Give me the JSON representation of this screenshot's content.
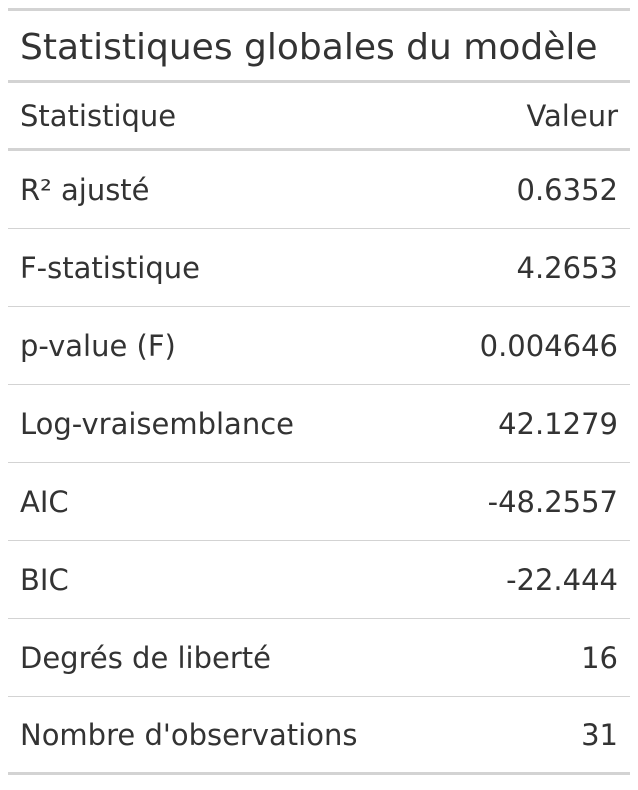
{
  "table": {
    "title": "Statistiques globales du modèle",
    "columns": [
      "Statistique",
      "Valeur"
    ],
    "rows": [
      {
        "label": "R² ajusté",
        "value": "0.6352"
      },
      {
        "label": "F-statistique",
        "value": "4.2653"
      },
      {
        "label": "p-value (F)",
        "value": "0.004646"
      },
      {
        "label": "Log-vraisemblance",
        "value": "42.1279"
      },
      {
        "label": "AIC",
        "value": "-48.2557"
      },
      {
        "label": "BIC",
        "value": "-22.444"
      },
      {
        "label": "Degrés de liberté",
        "value": "16"
      },
      {
        "label": "Nombre d'observations",
        "value": "31"
      }
    ]
  },
  "colors": {
    "rule": "#d3d3d3",
    "text": "#333333",
    "background": "#ffffff"
  }
}
